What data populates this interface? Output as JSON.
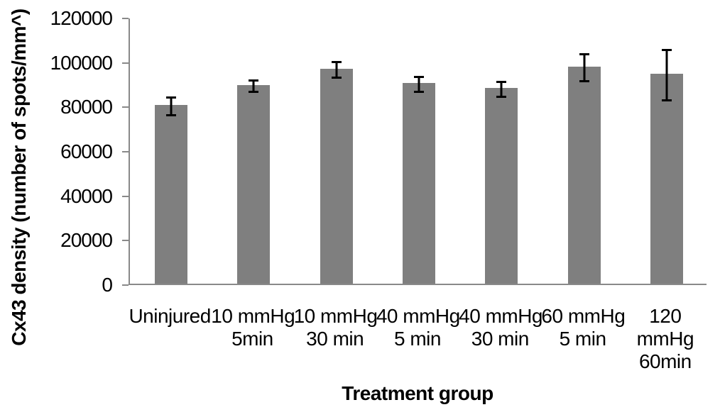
{
  "chart_data": {
    "type": "bar",
    "title": "",
    "xlabel": "Treatment group",
    "ylabel": "Cx43 density (number of spots/mm^)",
    "categories": [
      "Uninjured",
      "10 mmHg\n5min",
      "10 mmHg\n30 min",
      "40 mmHg\n5 min",
      "40 mmHg\n30 min",
      "60 mmHg\n5 min",
      "120\nmmHg\n60min"
    ],
    "values": [
      80400,
      89500,
      96800,
      90400,
      88100,
      97800,
      94400
    ],
    "error_bars": [
      4400,
      2900,
      4000,
      3900,
      3900,
      6600,
      11900
    ],
    "ylim": [
      0,
      120000
    ],
    "yticks": [
      0,
      20000,
      40000,
      60000,
      80000,
      100000,
      120000
    ],
    "grid": false,
    "legend": null,
    "bar_color": "#7F7F7F",
    "error_bar_color": "#000000",
    "axis_color": "#898989",
    "text_color": "#000000"
  }
}
